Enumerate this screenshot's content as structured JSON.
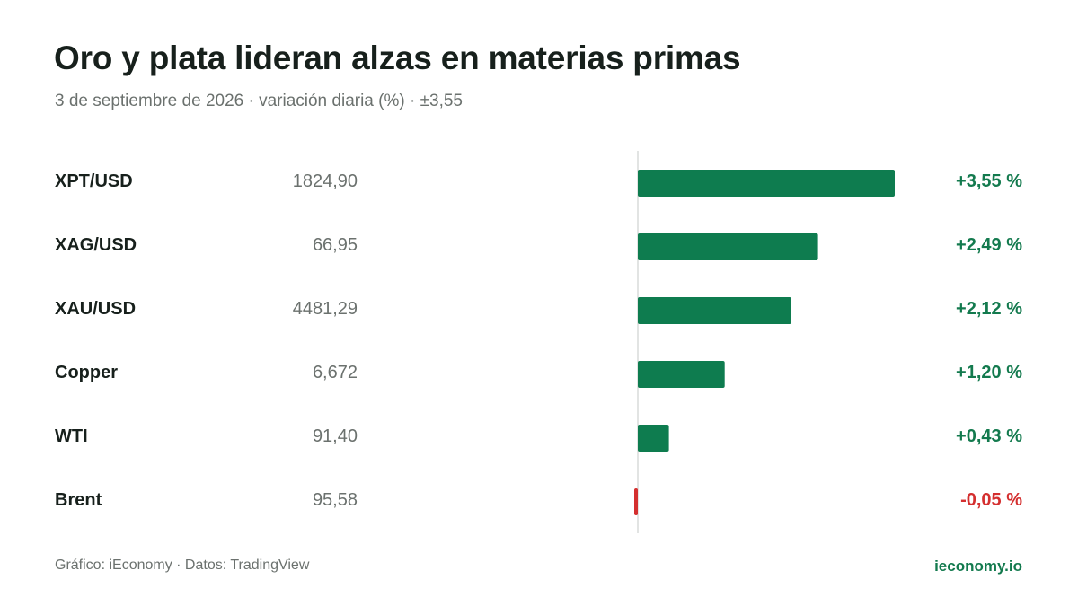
{
  "header": {
    "title": "Oro y plata lideran alzas en materias primas",
    "subtitle": "3 de septiembre de 2026 · variación diaria (%) · ±3,55"
  },
  "chart_data": {
    "type": "bar",
    "orientation": "horizontal",
    "title": "Oro y plata lideran alzas en materias primas",
    "subtitle": "3 de septiembre de 2026 · variación diaria (%) · ±3,55",
    "categories": [
      "XPT/USD",
      "XAG/USD",
      "XAU/USD",
      "Copper",
      "WTI",
      "Brent"
    ],
    "prices": [
      "1824,90",
      "66,95",
      "4481,29",
      "6,672",
      "91,40",
      "95,58"
    ],
    "values": [
      3.55,
      2.49,
      2.12,
      1.2,
      0.43,
      -0.05
    ],
    "value_labels": [
      "+3,55 %",
      "+2,49 %",
      "+2,12 %",
      "+1,20 %",
      "+0,43 %",
      "-0,05 %"
    ],
    "xlim": [
      -3.55,
      3.55
    ],
    "colors": {
      "positive": "#0e7c4f",
      "negative": "#d42f2f",
      "axis": "#d9dbda"
    },
    "grid": false,
    "legend": "none"
  },
  "footer": {
    "source": "Gráfico: iEconomy · Datos: TradingView",
    "brand": "ieconomy.io"
  }
}
